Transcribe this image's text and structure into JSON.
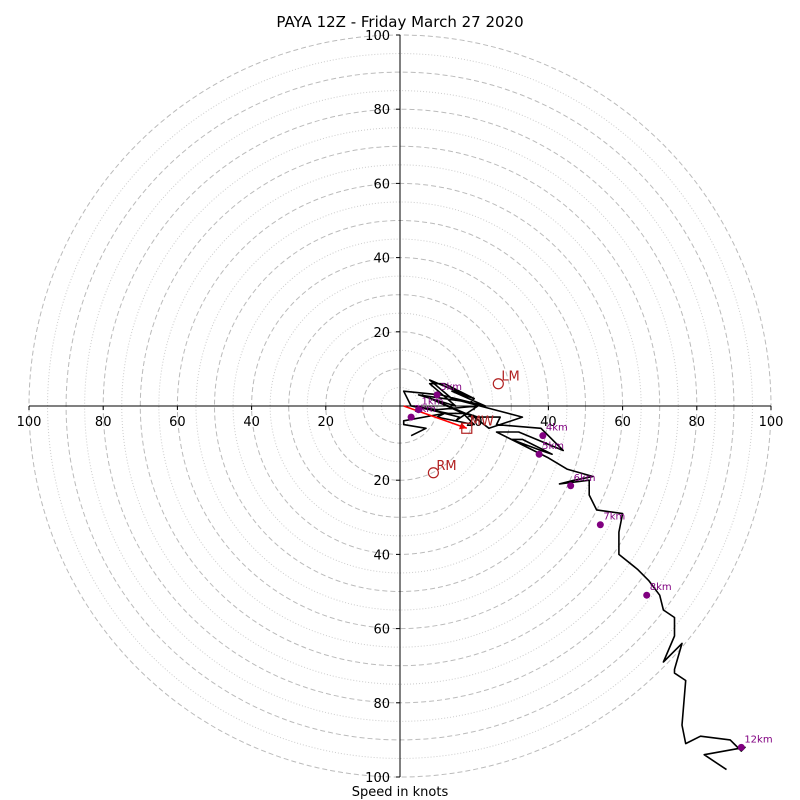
{
  "chart_data": {
    "type": "hodograph",
    "title": "PAYA 12Z - Friday March 27 2020",
    "xlabel": "Speed in knots",
    "axis_range": [
      -100,
      100
    ],
    "x_ticks": [
      "100",
      "80",
      "60",
      "40",
      "20",
      "20",
      "40",
      "60",
      "80",
      "100"
    ],
    "y_ticks": [
      "100",
      "80",
      "60",
      "40",
      "20",
      "20",
      "40",
      "60",
      "80",
      "100"
    ],
    "rings_major": [
      10,
      20,
      30,
      40,
      50,
      60,
      70,
      80,
      90,
      100
    ],
    "rings_minor": [
      5,
      15,
      25,
      35,
      45,
      55,
      65,
      75,
      85,
      95
    ],
    "colors": {
      "trace": "#000000",
      "height_marker": "#800080",
      "storm_motion": "#b22222",
      "shear_vector": "#ff0000",
      "grid": "#bbbbbb"
    },
    "trace": {
      "u": [
        3,
        7,
        1,
        1,
        12,
        10,
        20,
        17,
        6,
        20,
        24,
        33,
        14,
        8,
        20,
        19,
        5,
        15,
        8,
        12,
        20,
        14,
        23,
        11,
        1,
        3,
        10,
        21,
        15,
        16,
        4,
        3,
        13,
        18,
        21,
        27,
        26,
        38,
        44,
        32,
        26,
        30,
        38,
        41,
        33,
        30,
        40,
        45,
        52,
        47,
        43,
        51,
        51,
        53,
        60,
        59,
        59,
        64,
        67,
        70,
        71,
        74,
        74,
        71,
        76,
        74,
        74,
        77,
        76,
        77,
        81,
        89,
        92,
        93,
        82,
        88
      ],
      "v": [
        -8,
        -6,
        -5,
        -4,
        -2,
        -3,
        -5,
        -2,
        3,
        -3,
        -6,
        -3,
        2,
        7,
        2,
        1,
        3,
        0,
        6,
        6,
        2,
        4,
        0,
        3,
        4,
        0,
        -1,
        0,
        -4,
        -3,
        0,
        0,
        -2,
        -2,
        -3,
        -3,
        -5,
        -6,
        -12,
        -7,
        -7,
        -9,
        -12,
        -13,
        -9,
        -9,
        -14,
        -17,
        -19,
        -20,
        -21,
        -20,
        -24,
        -28,
        -29,
        -34,
        -40,
        -44,
        -47,
        -51,
        -55,
        -57,
        -62,
        -69,
        -64,
        -71,
        -72,
        -74,
        -86,
        -91,
        -89,
        -90,
        -93,
        -92,
        -94,
        -98
      ]
    },
    "heights": [
      {
        "label": "1km",
        "u": 5,
        "v": -1
      },
      {
        "label": "2km",
        "u": 3,
        "v": -3
      },
      {
        "label": "3km",
        "u": 10,
        "v": 3
      },
      {
        "label": "4km",
        "u": 38.5,
        "v": -8
      },
      {
        "label": "5km",
        "u": 37.5,
        "v": -13
      },
      {
        "label": "6km",
        "u": 46,
        "v": -21.5
      },
      {
        "label": "7km",
        "u": 54,
        "v": -32
      },
      {
        "label": "8km",
        "u": 66.5,
        "v": -51
      },
      {
        "label": "12km",
        "u": 92,
        "v": -92
      }
    ],
    "storm_motion": [
      {
        "label": "LM",
        "u": 26.5,
        "v": 6,
        "shape": "circle"
      },
      {
        "label": "RM",
        "u": 9,
        "v": -18,
        "shape": "circle"
      },
      {
        "label": "MW",
        "u": 18,
        "v": -6,
        "shape": "square"
      }
    ],
    "shear_vector": {
      "from": [
        1,
        0
      ],
      "to": [
        18,
        -6
      ]
    }
  }
}
